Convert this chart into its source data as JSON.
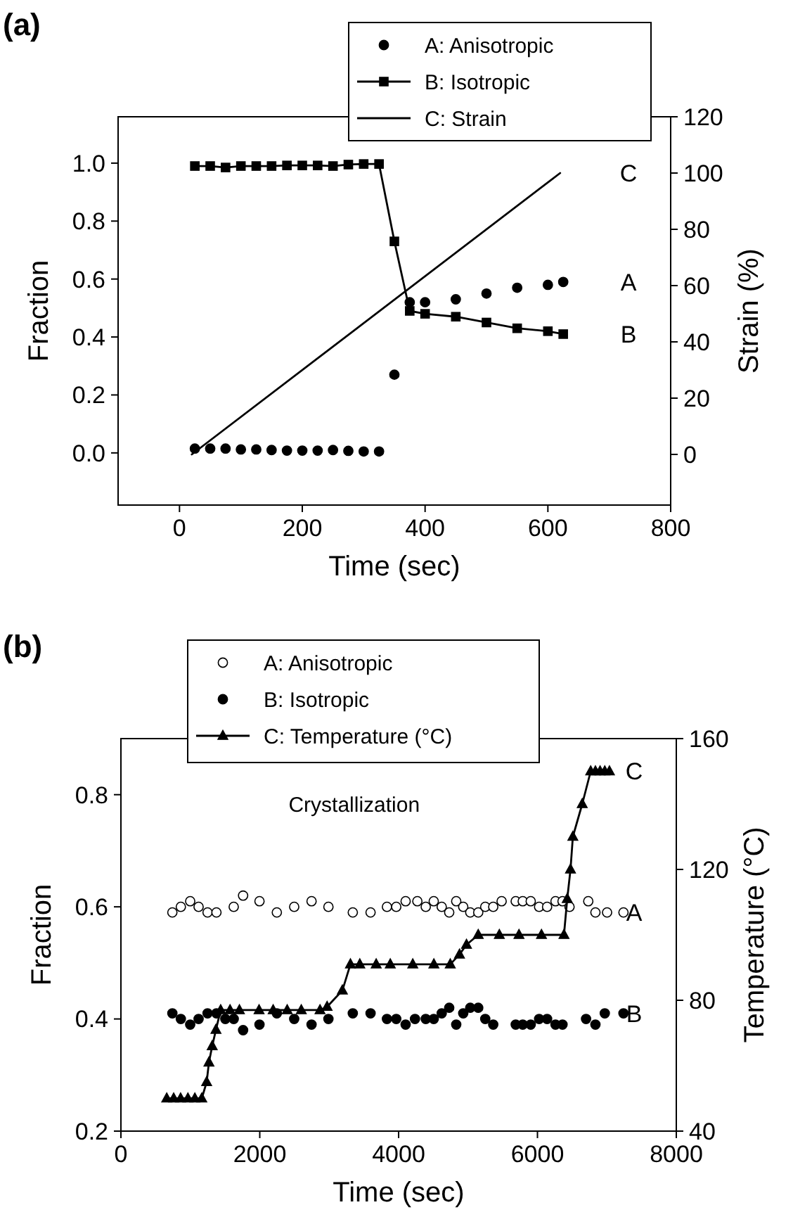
{
  "chart_data": [
    {
      "type": "scatter",
      "title": "(a)",
      "xlabel": "Time (sec)",
      "ylabel": "Fraction",
      "y2label": "Strain (%)",
      "legend": "top right",
      "xlim": [
        -100,
        800
      ],
      "xticks": [
        0,
        200,
        400,
        600,
        800
      ],
      "ylim": [
        -0.18,
        1.16
      ],
      "yticks": [
        {
          "value": 0,
          "label": "0.0"
        },
        0.2,
        0.4,
        0.6,
        0.8,
        {
          "value": 1,
          "label": "1.0"
        }
      ],
      "y2lim": [
        -18,
        120
      ],
      "y2ticks": [
        0,
        20,
        40,
        60,
        80,
        100,
        120
      ],
      "series": [
        {
          "name": "A: Anisotropic",
          "type": "scatter",
          "marker": "circle",
          "color": "#000000",
          "x": [
            25,
            50,
            75,
            100,
            125,
            150,
            175,
            200,
            225,
            250,
            275,
            300,
            325,
            350,
            375,
            400,
            450,
            500,
            550,
            600,
            625
          ],
          "values": [
            0.015,
            0.015,
            0.015,
            0.012,
            0.012,
            0.01,
            0.008,
            0.008,
            0.008,
            0.01,
            0.007,
            0.005,
            0.005,
            0.27,
            0.52,
            0.52,
            0.53,
            0.55,
            0.57,
            0.58,
            0.59
          ]
        },
        {
          "name": "B: Isotropic",
          "type": "line",
          "marker": "square",
          "color": "#000000",
          "x": [
            25,
            50,
            75,
            100,
            125,
            150,
            175,
            200,
            225,
            250,
            275,
            300,
            325,
            350,
            375,
            400,
            450,
            500,
            550,
            600,
            625
          ],
          "values": [
            0.99,
            0.99,
            0.985,
            0.99,
            0.99,
            0.99,
            0.992,
            0.992,
            0.992,
            0.99,
            0.995,
            0.997,
            0.997,
            0.73,
            0.49,
            0.48,
            0.47,
            0.45,
            0.43,
            0.42,
            0.41
          ]
        },
        {
          "name": "C: Strain",
          "type": "line",
          "marker": "none",
          "color": "#000000",
          "axis": "y2",
          "x": [
            20,
            620
          ],
          "values": [
            0,
            100
          ]
        }
      ],
      "annotations": [
        "A",
        "B",
        "C"
      ]
    },
    {
      "type": "scatter",
      "title": "(b)",
      "xlabel": "Time (sec)",
      "ylabel": "Fraction",
      "y2label": "Temperature (°C)",
      "legend": "top",
      "xlim": [
        0,
        8000
      ],
      "xticks": [
        0,
        2000,
        4000,
        6000,
        8000
      ],
      "ylim": [
        0.2,
        0.9
      ],
      "yticks": [
        0.2,
        0.4,
        0.6,
        0.8
      ],
      "y2lim": [
        40,
        160
      ],
      "y2ticks": [
        40,
        80,
        120,
        160
      ],
      "series": [
        {
          "name": "A: Anisotropic",
          "type": "scatter",
          "marker": "circle",
          "color": "#ffffff",
          "x": [
            741,
            863,
            998,
            1119,
            1248,
            1376,
            1625,
            1760,
            1996,
            2246,
            2496,
            2746,
            2989,
            3340,
            3596,
            3832,
            3966,
            4101,
            4270,
            4391,
            4506,
            4621,
            4729,
            4830,
            4931,
            5032,
            5147,
            5248,
            5363,
            5484,
            5687,
            5788,
            5903,
            6024,
            6139,
            6260,
            6361,
            6462,
            6732,
            6835,
            7003,
            7239
          ],
          "values": [
            0.59,
            0.6,
            0.61,
            0.6,
            0.59,
            0.59,
            0.6,
            0.62,
            0.61,
            0.59,
            0.6,
            0.61,
            0.6,
            0.59,
            0.59,
            0.6,
            0.6,
            0.61,
            0.61,
            0.6,
            0.61,
            0.6,
            0.59,
            0.61,
            0.6,
            0.59,
            0.59,
            0.6,
            0.6,
            0.61,
            0.61,
            0.61,
            0.61,
            0.6,
            0.6,
            0.61,
            0.61,
            0.6,
            0.61,
            0.59,
            0.59,
            0.59
          ]
        },
        {
          "name": "B: Isotropic",
          "type": "scatter",
          "marker": "circle",
          "color": "#000000",
          "x": [
            741,
            863,
            998,
            1119,
            1248,
            1376,
            1504,
            1625,
            1760,
            1996,
            2246,
            2496,
            2746,
            2989,
            3340,
            3596,
            3832,
            3966,
            4101,
            4236,
            4391,
            4506,
            4621,
            4729,
            4830,
            4931,
            5032,
            5147,
            5248,
            5363,
            5687,
            5788,
            5903,
            6024,
            6139,
            6260,
            6361,
            6700,
            6835,
            6970,
            7239
          ],
          "values": [
            0.41,
            0.4,
            0.39,
            0.4,
            0.41,
            0.41,
            0.4,
            0.4,
            0.38,
            0.39,
            0.41,
            0.4,
            0.39,
            0.4,
            0.41,
            0.41,
            0.4,
            0.4,
            0.39,
            0.4,
            0.4,
            0.4,
            0.41,
            0.42,
            0.39,
            0.41,
            0.42,
            0.42,
            0.4,
            0.39,
            0.39,
            0.39,
            0.39,
            0.4,
            0.4,
            0.39,
            0.39,
            0.4,
            0.39,
            0.41,
            0.41
          ]
        },
        {
          "name": "C: Temperature (°C)",
          "type": "line",
          "marker": "triangle",
          "color": "#000000",
          "axis": "y2",
          "x": [
            660,
            760,
            860,
            965,
            1065,
            1165,
            1235,
            1268,
            1315,
            1369,
            1437,
            1572,
            1707,
            1990,
            2193,
            2395,
            2598,
            2868,
            2970,
            3190,
            3306,
            3441,
            3677,
            3880,
            4204,
            4508,
            4744,
            4877,
            4978,
            5147,
            5451,
            5734,
            6058,
            6382,
            6429,
            6476,
            6510,
            6645,
            6767,
            6835,
            6902,
            6970,
            7037
          ],
          "values": [
            50,
            50,
            50,
            50,
            50,
            50,
            55,
            61,
            66,
            71,
            77,
            77,
            77,
            77,
            77,
            77,
            77,
            77,
            78,
            83,
            91,
            91,
            91,
            91,
            91,
            91,
            91,
            94,
            97,
            100,
            100,
            100,
            100,
            100,
            111,
            120,
            130,
            140,
            150,
            150,
            150,
            150,
            150
          ]
        }
      ],
      "annotations": [
        "A",
        "B",
        "C",
        "Crystallization"
      ]
    }
  ]
}
